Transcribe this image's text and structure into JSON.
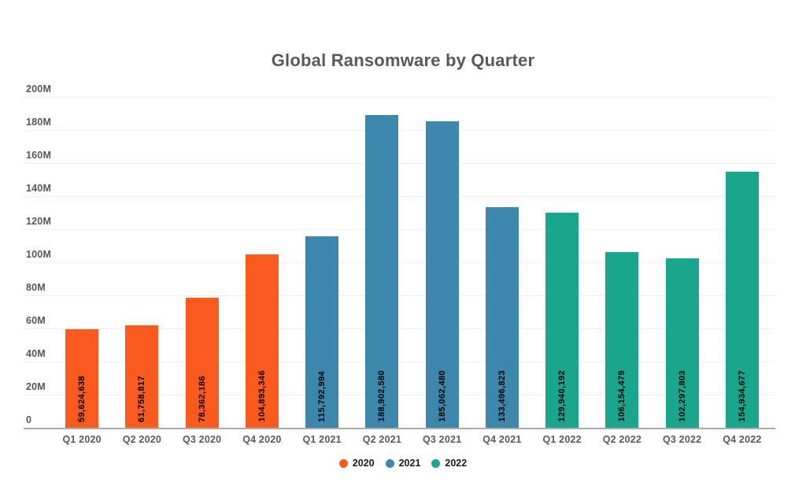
{
  "title": "Global Ransomware by Quarter",
  "chart_data": {
    "type": "bar",
    "title": "Global Ransomware by Quarter",
    "xlabel": "",
    "ylabel": "",
    "categories": [
      "Q1 2020",
      "Q2 2020",
      "Q3 2020",
      "Q4 2020",
      "Q1 2021",
      "Q2 2021",
      "Q3 2021",
      "Q4 2021",
      "Q1 2022",
      "Q2 2022",
      "Q3 2022",
      "Q4 2022"
    ],
    "series": [
      {
        "name": "2020",
        "color": "#FB5A1E",
        "values": [
          59624638,
          61758817,
          78362186,
          104893346
        ]
      },
      {
        "name": "2021",
        "color": "#3D86AC",
        "values": [
          115792994,
          188902580,
          185062480,
          133496823
        ]
      },
      {
        "name": "2022",
        "color": "#19A68C",
        "values": [
          129940192,
          106154479,
          102297803,
          154934677
        ]
      }
    ],
    "ylim": [
      0,
      200000000
    ],
    "yticks": [
      "200M",
      "180M",
      "160M",
      "140M",
      "120M",
      "100M",
      "80M",
      "60M",
      "40M",
      "20M",
      "0"
    ],
    "grid": true,
    "legend_position": "bottom",
    "value_labels_shown": true,
    "value_label_rotation_deg": 90
  },
  "style_colors": {
    "title_text": "#595959",
    "axis_text": "#595959",
    "gridline": "#efefef",
    "baseline": "#ababab",
    "bar_value_text": "#000000",
    "legend_text": "#1a1a1a",
    "background": "#ffffff"
  }
}
